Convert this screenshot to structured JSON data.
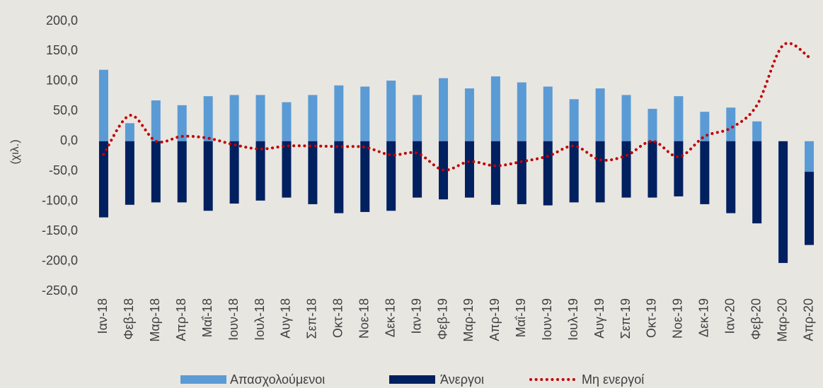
{
  "chart_data": {
    "type": "bar",
    "y_label": "(χιλ.)",
    "categories": [
      "Ιαν-18",
      "Φεβ-18",
      "Μαρ-18",
      "Απρ-18",
      "Μαΐ-18",
      "Ιουν-18",
      "Ιουλ-18",
      "Αυγ-18",
      "Σεπ-18",
      "Οκτ-18",
      "Νοε-18",
      "Δεκ-18",
      "Ιαν-19",
      "Φεβ-19",
      "Μαρ-19",
      "Απρ-19",
      "Μαΐ-19",
      "Ιουν-19",
      "Ιουλ-19",
      "Αυγ-19",
      "Σεπ-19",
      "Οκτ-19",
      "Νοε-19",
      "Δεκ-19",
      "Ιαν-20",
      "Φεβ-20",
      "Μαρ-20",
      "Απρ-20"
    ],
    "series": [
      {
        "name": "Απασχολούμενοι",
        "color": "#5b9bd5",
        "kind": "bar",
        "values": [
          119,
          30,
          68,
          60,
          75,
          77,
          77,
          65,
          77,
          93,
          91,
          101,
          77,
          105,
          88,
          108,
          98,
          91,
          70,
          88,
          77,
          54,
          75,
          49,
          56,
          33,
          0,
          -51
        ]
      },
      {
        "name": "Άνεργοι",
        "color": "#002060",
        "kind": "bar",
        "values": [
          -127,
          -106,
          -102,
          -102,
          -116,
          -104,
          -99,
          -94,
          -105,
          -120,
          -118,
          -116,
          -94,
          -97,
          -94,
          -106,
          -105,
          -107,
          -102,
          -102,
          -94,
          -94,
          -92,
          -105,
          -120,
          -137,
          -203,
          -122
        ]
      },
      {
        "name": "Μη ενεργοί",
        "color": "#c00000",
        "kind": "line",
        "values": [
          -22,
          43,
          0,
          8,
          5,
          -6,
          -13,
          -8,
          -8,
          -9,
          -10,
          -23,
          -20,
          -48,
          -34,
          -41,
          -34,
          -25,
          -8,
          -31,
          -24,
          0,
          -26,
          8,
          22,
          60,
          160,
          140
        ]
      }
    ],
    "stacked": true,
    "ylim": [
      -250,
      200
    ],
    "yticks": [
      {
        "value": 200,
        "label": "200,0"
      },
      {
        "value": 150,
        "label": "150,0"
      },
      {
        "value": 100,
        "label": "100,0"
      },
      {
        "value": 50,
        "label": "50,0"
      },
      {
        "value": 0,
        "label": "0,0"
      },
      {
        "value": -50,
        "label": "-50,0"
      },
      {
        "value": -100,
        "label": "-100,0"
      },
      {
        "value": -150,
        "label": "-150,0"
      },
      {
        "value": -200,
        "label": "-200,0"
      },
      {
        "value": -250,
        "label": "-250,0"
      }
    ],
    "grid": false
  }
}
